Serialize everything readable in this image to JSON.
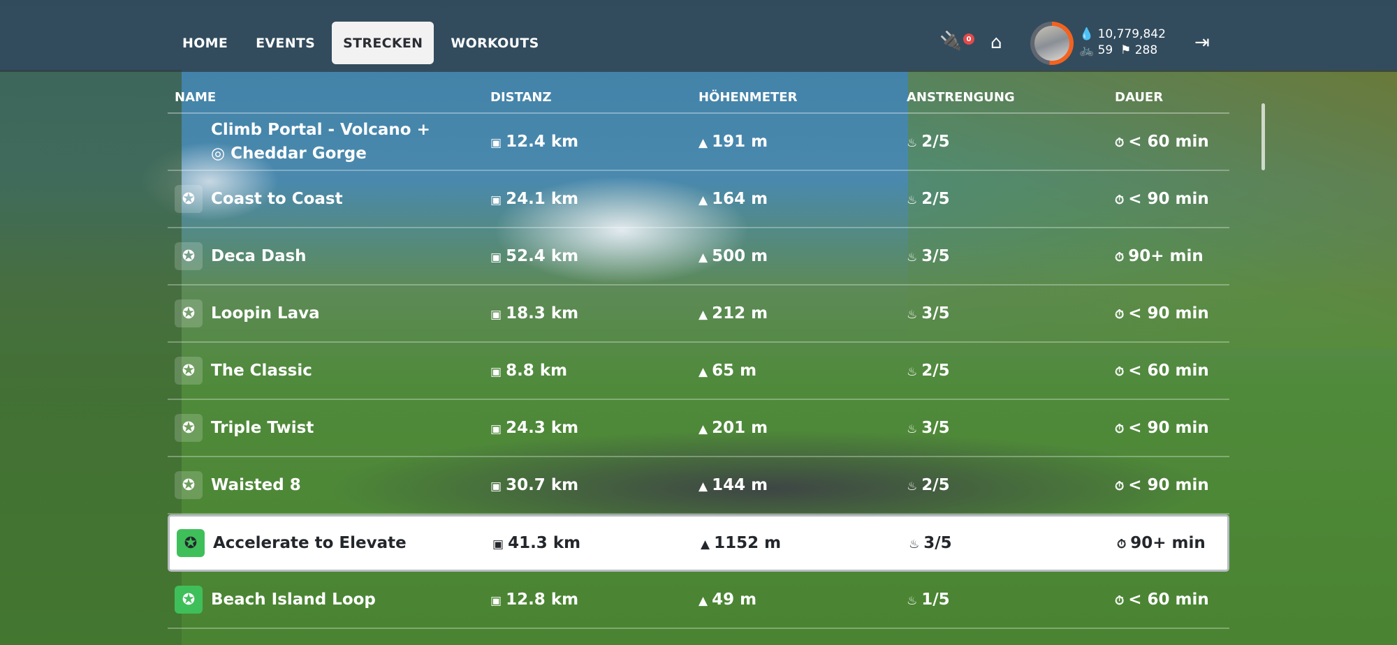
{
  "nav": {
    "tabs": [
      {
        "label": "HOME"
      },
      {
        "label": "EVENTS"
      },
      {
        "label": "STRECKEN",
        "active": true
      },
      {
        "label": "WORKOUTS"
      }
    ]
  },
  "header": {
    "notifications": "0",
    "drops": "10,779,842",
    "level": "59",
    "achievements": "288",
    "icons": [
      "pairing-icon",
      "garage-icon",
      "drop-icon",
      "bike-icon",
      "flag-icon",
      "exit-icon"
    ],
    "avatar_ring_color": "#f4621f"
  },
  "columns": [
    "NAME",
    "DISTANZ",
    "HÖHENMETER",
    "ANSTRENGUNG",
    "DAUER"
  ],
  "rows": [
    {
      "name": "Climb Portal - Volcano +",
      "name2": "Cheddar Gorge",
      "badge": "portal",
      "distance": "12.4 km",
      "elevation": "191 m",
      "effort": "2/5",
      "duration": "< 60 min"
    },
    {
      "name": "Coast to Coast",
      "badge": "grey",
      "distance": "24.1 km",
      "elevation": "164 m",
      "effort": "2/5",
      "duration": "< 90 min"
    },
    {
      "name": "Deca Dash",
      "badge": "grey",
      "distance": "52.4 km",
      "elevation": "500 m",
      "effort": "3/5",
      "duration": "90+ min"
    },
    {
      "name": "Loopin Lava",
      "badge": "grey",
      "distance": "18.3 km",
      "elevation": "212 m",
      "effort": "3/5",
      "duration": "< 90 min"
    },
    {
      "name": "The Classic",
      "badge": "grey",
      "distance": "8.8 km",
      "elevation": "65 m",
      "effort": "2/5",
      "duration": "< 60 min"
    },
    {
      "name": "Triple Twist",
      "badge": "grey",
      "distance": "24.3 km",
      "elevation": "201 m",
      "effort": "3/5",
      "duration": "< 90 min"
    },
    {
      "name": "Waisted 8",
      "badge": "grey",
      "distance": "30.7 km",
      "elevation": "144 m",
      "effort": "2/5",
      "duration": "< 90 min"
    },
    {
      "name": "Accelerate to Elevate",
      "badge": "green",
      "selected": true,
      "distance": "41.3 km",
      "elevation": "1152 m",
      "effort": "3/5",
      "duration": "90+ min"
    },
    {
      "name": "Beach Island Loop",
      "badge": "green",
      "distance": "12.8 km",
      "elevation": "49 m",
      "effort": "1/5",
      "duration": "< 60 min"
    }
  ],
  "colors": {
    "badge_completed": "#3fbf5a",
    "selected_row": "#ffffff"
  }
}
